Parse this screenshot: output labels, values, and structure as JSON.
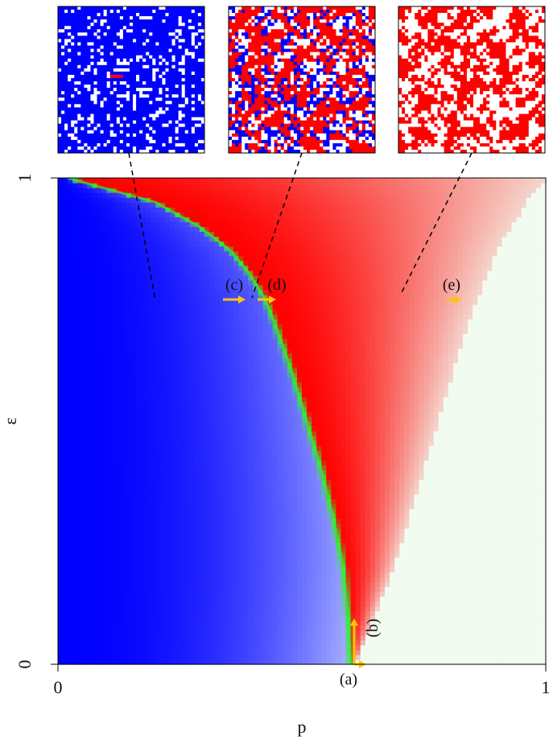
{
  "chart_data": {
    "type": "heatmap",
    "title": "",
    "xlabel": "p",
    "ylabel": "ε",
    "xlim": [
      0,
      1
    ],
    "ylim": [
      0,
      1
    ],
    "x_ticks": [
      "0",
      "1"
    ],
    "y_ticks": [
      "0",
      "1"
    ],
    "grid": false,
    "colors": {
      "blue_phase": "#0000ff",
      "red_phase": "#ff0000",
      "empty_phase": "#f2fbf0",
      "boundary": "#33ee33",
      "arrow": "#ffc400",
      "snapshot_empty": "#ffffff"
    },
    "phase_boundary": {
      "eps": [
        0.0,
        0.1,
        0.2,
        0.3,
        0.4,
        0.5,
        0.6,
        0.7,
        0.75,
        0.8,
        0.85,
        0.9,
        0.95,
        1.0
      ],
      "p": [
        0.6,
        0.595,
        0.585,
        0.565,
        0.54,
        0.51,
        0.48,
        0.445,
        0.425,
        0.395,
        0.355,
        0.29,
        0.2,
        0.02
      ]
    },
    "red_empty_boundary": {
      "eps": [
        0.0,
        0.1,
        0.2,
        0.3,
        0.4,
        0.5,
        0.6,
        0.7,
        0.75,
        0.8,
        0.85,
        0.9,
        0.95,
        1.0
      ],
      "p": [
        0.61,
        0.65,
        0.69,
        0.72,
        0.75,
        0.78,
        0.81,
        0.84,
        0.86,
        0.88,
        0.9,
        0.93,
        0.96,
        1.0
      ]
    },
    "annotations": [
      {
        "label": "(a)",
        "p": 0.6,
        "eps": 0.0
      },
      {
        "label": "(b)",
        "p": 0.6,
        "eps": 0.05
      },
      {
        "label": "(c)",
        "p": 0.37,
        "eps": 0.75
      },
      {
        "label": "(d)",
        "p": 0.45,
        "eps": 0.75
      },
      {
        "label": "(e)",
        "p": 0.8,
        "eps": 0.75
      }
    ],
    "snapshots": [
      {
        "id": "c",
        "description_color": "blue",
        "blue_fraction": 0.8,
        "red_fraction": 0.01,
        "empty_fraction": 0.19,
        "anchor_p": 0.2,
        "anchor_eps": 0.75
      },
      {
        "id": "d",
        "description_color": "mixed",
        "blue_fraction": 0.25,
        "red_fraction": 0.5,
        "empty_fraction": 0.25,
        "anchor_p": 0.4,
        "anchor_eps": 0.76
      },
      {
        "id": "e",
        "description_color": "red",
        "blue_fraction": 0.0,
        "red_fraction": 0.62,
        "empty_fraction": 0.38,
        "anchor_p": 0.7,
        "anchor_eps": 0.76
      }
    ]
  }
}
